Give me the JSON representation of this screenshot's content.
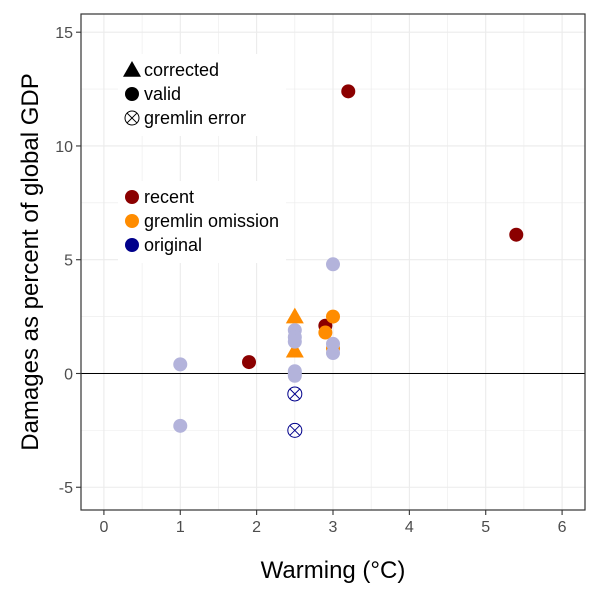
{
  "chart_data": {
    "type": "scatter",
    "xlabel": "Warming (°C)",
    "ylabel": "Damages as percent of global GDP",
    "xlim": [
      -0.3,
      6.3
    ],
    "ylim": [
      -6,
      15.8
    ],
    "x_ticks": [
      0,
      1,
      2,
      3,
      4,
      5,
      6
    ],
    "y_ticks": [
      -5,
      0,
      5,
      10,
      15
    ],
    "x_tick_labels": [
      "0",
      "1",
      "2",
      "3",
      "4",
      "5",
      "6"
    ],
    "y_tick_labels": [
      "-5",
      "0",
      "5",
      "10",
      "15"
    ],
    "grid": true,
    "zero_line": true,
    "legend_shape": {
      "position": "top-left",
      "entries": [
        {
          "label": "corrected",
          "marker": "triangle"
        },
        {
          "label": "valid",
          "marker": "circle"
        },
        {
          "label": "gremlin error",
          "marker": "circle-x"
        }
      ]
    },
    "legend_color": {
      "position": "upper-left",
      "entries": [
        {
          "label": "recent",
          "color": "#8b0000"
        },
        {
          "label": "gremlin omission",
          "color": "#ff8c00"
        },
        {
          "label": "original",
          "color": "#00008b"
        }
      ]
    },
    "colors": {
      "recent": "#8b0000",
      "gremlin_omission": "#ff8c00",
      "original": "#00008b",
      "original_faded": "#b3b3db"
    },
    "points": [
      {
        "x": 3.2,
        "y": 12.4,
        "group": "recent",
        "marker": "circle"
      },
      {
        "x": 5.4,
        "y": 6.1,
        "group": "recent",
        "marker": "circle"
      },
      {
        "x": 1.9,
        "y": 0.5,
        "group": "recent",
        "marker": "circle"
      },
      {
        "x": 2.9,
        "y": 2.1,
        "group": "recent",
        "marker": "circle"
      },
      {
        "x": 2.5,
        "y": 2.5,
        "group": "gremlin_omission",
        "marker": "triangle"
      },
      {
        "x": 2.5,
        "y": 1.0,
        "group": "gremlin_omission",
        "marker": "triangle"
      },
      {
        "x": 2.9,
        "y": 1.8,
        "group": "gremlin_omission",
        "marker": "circle"
      },
      {
        "x": 3.0,
        "y": 2.5,
        "group": "gremlin_omission",
        "marker": "circle"
      },
      {
        "x": 3.0,
        "y": 1.1,
        "group": "gremlin_omission",
        "marker": "circle"
      },
      {
        "x": 1.0,
        "y": 0.4,
        "group": "original",
        "marker": "circle"
      },
      {
        "x": 1.0,
        "y": -2.3,
        "group": "original",
        "marker": "circle"
      },
      {
        "x": 2.5,
        "y": 1.9,
        "group": "original",
        "marker": "circle"
      },
      {
        "x": 2.5,
        "y": 1.6,
        "group": "original",
        "marker": "circle"
      },
      {
        "x": 2.5,
        "y": 1.4,
        "group": "original",
        "marker": "circle"
      },
      {
        "x": 2.5,
        "y": 0.1,
        "group": "original",
        "marker": "circle"
      },
      {
        "x": 2.5,
        "y": -0.1,
        "group": "original",
        "marker": "circle"
      },
      {
        "x": 2.5,
        "y": 0.0,
        "group": "original",
        "marker": "circle"
      },
      {
        "x": 3.0,
        "y": 4.8,
        "group": "original",
        "marker": "circle"
      },
      {
        "x": 3.0,
        "y": 1.3,
        "group": "original",
        "marker": "circle"
      },
      {
        "x": 3.0,
        "y": 0.9,
        "group": "original",
        "marker": "circle"
      },
      {
        "x": 2.5,
        "y": -0.9,
        "group": "original",
        "marker": "circle-x"
      },
      {
        "x": 2.5,
        "y": -2.5,
        "group": "original",
        "marker": "circle-x"
      }
    ]
  }
}
